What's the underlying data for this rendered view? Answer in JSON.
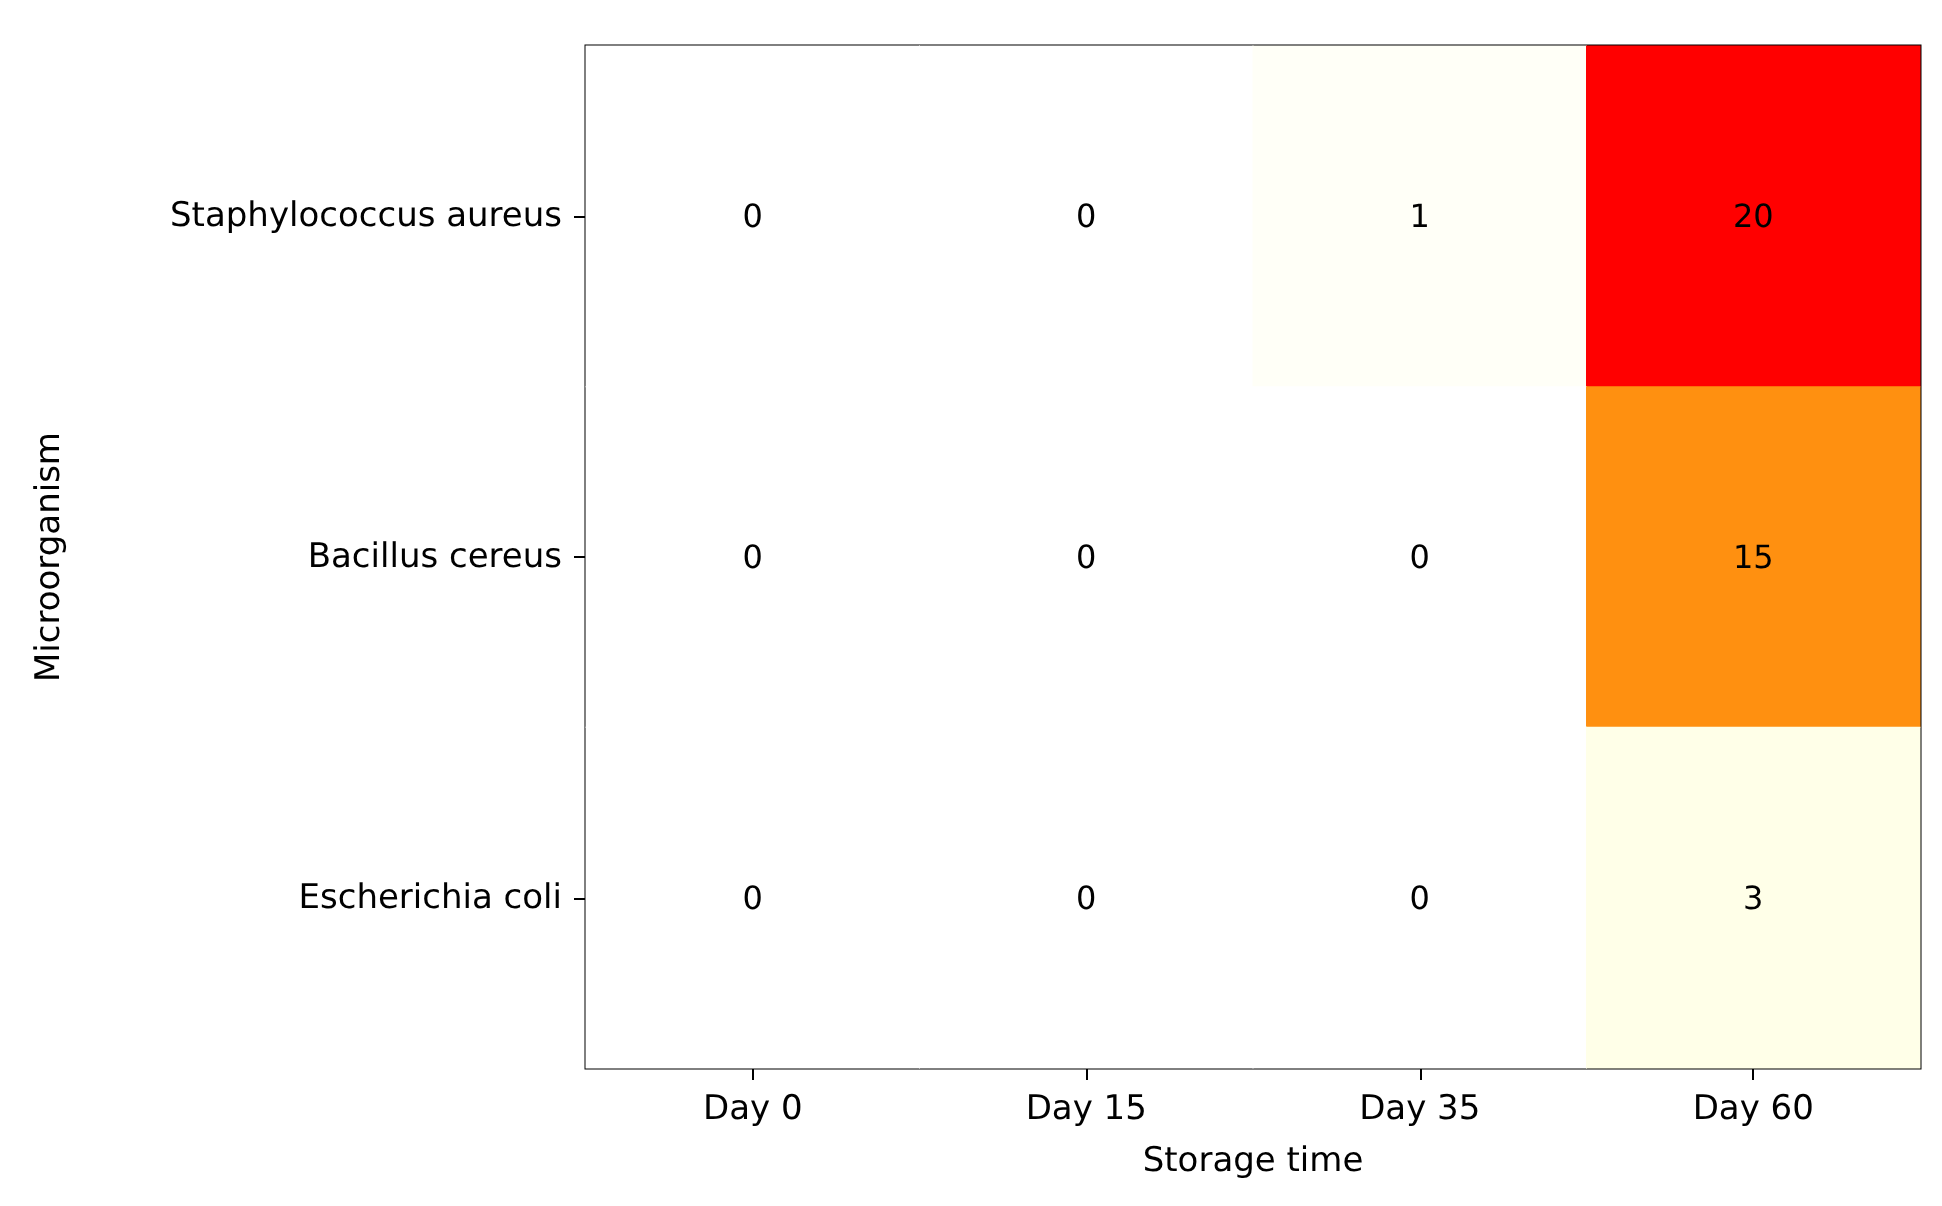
{
  "chart_data": {
    "type": "heatmap",
    "xlabel": "Storage time",
    "ylabel": "Microorganism",
    "categories": [
      "Day 0",
      "Day 15",
      "Day 35",
      "Day 60"
    ],
    "y_categories": [
      "Staphylococcus aureus",
      "Bacillus cereus",
      "Escherichia coli"
    ],
    "cells": [
      [
        0,
        0,
        1,
        20
      ],
      [
        0,
        0,
        0,
        15
      ],
      [
        0,
        0,
        0,
        3
      ]
    ],
    "data_labels": true
  }
}
